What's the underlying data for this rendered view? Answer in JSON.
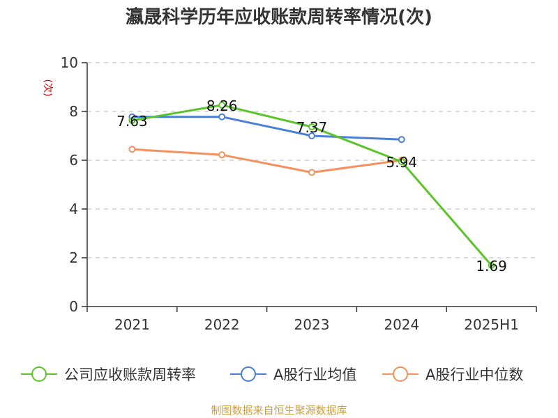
{
  "chart_data": {
    "type": "line",
    "title": "瀛晟科学历年应收账款周转率情况(次)",
    "unit": "(次)",
    "categories": [
      "2021",
      "2022",
      "2023",
      "2024",
      "2025H1"
    ],
    "ylim": [
      0,
      10
    ],
    "yticks": [
      0,
      2,
      4,
      6,
      8,
      10
    ],
    "grid": true,
    "legend_position": "bottom",
    "series": [
      {
        "name": "公司应收账款周转率",
        "color": "#5bc42a",
        "values": [
          7.63,
          8.26,
          7.37,
          5.94,
          1.69
        ],
        "labels": [
          "7.63",
          "8.26",
          "7.37",
          "5.94",
          "1.69"
        ]
      },
      {
        "name": "A股行业均值",
        "color": "#4a7fd9",
        "values": [
          7.78,
          7.78,
          7.0,
          6.85,
          null
        ]
      },
      {
        "name": "A股行业中位数",
        "color": "#f4915e",
        "values": [
          6.45,
          6.22,
          5.5,
          6.0,
          null
        ]
      }
    ]
  },
  "footer": {
    "source": "制图数据来自恒生聚源数据库"
  }
}
